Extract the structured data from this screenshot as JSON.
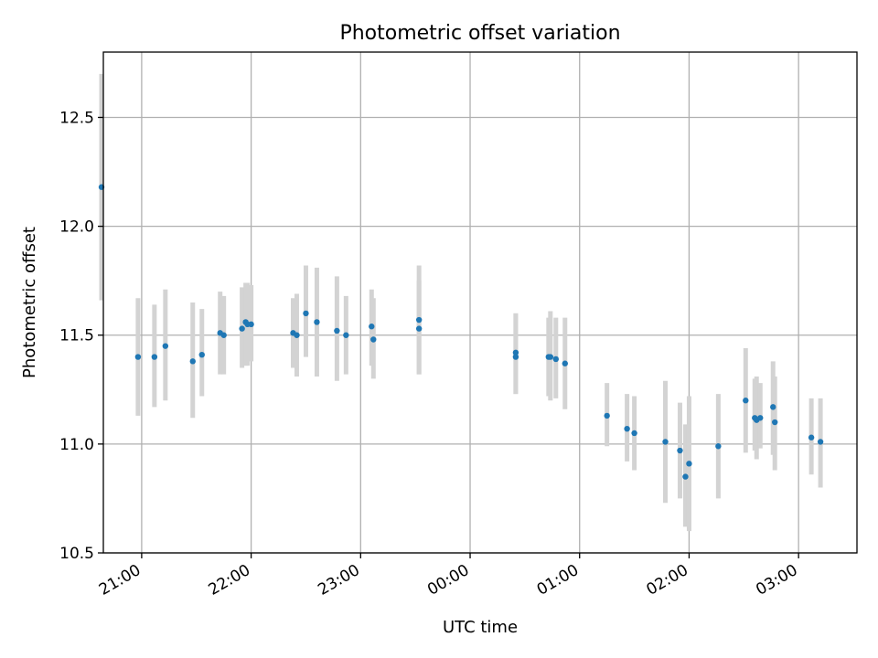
{
  "chart_data": {
    "type": "scatter",
    "title": "Photometric offset variation",
    "xlabel": "UTC time",
    "ylabel": "Photometric offset",
    "ylim": [
      10.5,
      12.8
    ],
    "xlim": [
      "20:39",
      "03:32"
    ],
    "yticks": [
      "10.5",
      "11.0",
      "11.5",
      "12.0",
      "12.5"
    ],
    "xticks": [
      "21:00",
      "22:00",
      "23:00",
      "00:00",
      "01:00",
      "02:00",
      "03:00"
    ],
    "grid": true,
    "legend": false,
    "colors": {
      "points": "#1f77b4",
      "errorbars": "#d3d3d3"
    },
    "series": [
      {
        "x": [
          "20:38",
          "20:58",
          "21:07",
          "21:13",
          "21:28",
          "21:33",
          "21:43",
          "21:45",
          "21:55",
          "21:57",
          "21:58",
          "22:00",
          "22:23",
          "22:25",
          "22:30",
          "22:36",
          "22:47",
          "22:52",
          "23:06",
          "23:07",
          "23:32",
          "23:32",
          "00:25",
          "00:25",
          "00:43",
          "00:44",
          "00:47",
          "00:52",
          "01:15",
          "01:26",
          "01:30",
          "01:47",
          "01:55",
          "01:58",
          "02:00",
          "02:16",
          "02:31",
          "02:36",
          "02:37",
          "02:39",
          "02:46",
          "02:47",
          "03:07",
          "03:12"
        ],
        "y": [
          12.18,
          11.4,
          11.4,
          11.45,
          11.38,
          11.41,
          11.51,
          11.5,
          11.53,
          11.56,
          11.55,
          11.55,
          11.51,
          11.5,
          11.6,
          11.56,
          11.52,
          11.5,
          11.54,
          11.48,
          11.57,
          11.53,
          11.4,
          11.42,
          11.4,
          11.4,
          11.39,
          11.37,
          11.13,
          11.07,
          11.05,
          11.01,
          10.97,
          10.85,
          10.91,
          10.99,
          11.2,
          11.12,
          11.11,
          11.12,
          11.17,
          11.1,
          11.03,
          11.01
        ],
        "err_low": [
          11.66,
          11.13,
          11.17,
          11.2,
          11.12,
          11.22,
          11.32,
          11.32,
          11.35,
          11.36,
          11.36,
          11.38,
          11.35,
          11.31,
          11.4,
          11.31,
          11.29,
          11.32,
          11.36,
          11.3,
          11.32,
          11.32,
          11.23,
          11.23,
          11.22,
          11.2,
          11.21,
          11.16,
          10.99,
          10.92,
          10.88,
          10.73,
          10.75,
          10.62,
          10.6,
          10.75,
          10.96,
          10.97,
          10.93,
          10.98,
          10.95,
          10.88,
          10.86,
          10.8
        ],
        "err_high": [
          12.7,
          11.67,
          11.64,
          11.71,
          11.65,
          11.62,
          11.7,
          11.68,
          11.72,
          11.74,
          11.74,
          11.73,
          11.67,
          11.69,
          11.82,
          11.81,
          11.77,
          11.68,
          11.71,
          11.67,
          11.82,
          11.75,
          11.6,
          11.6,
          11.58,
          11.61,
          11.58,
          11.58,
          11.28,
          11.23,
          11.22,
          11.29,
          11.19,
          11.09,
          11.22,
          11.23,
          11.44,
          11.3,
          11.31,
          11.28,
          11.38,
          11.31,
          11.21,
          11.21
        ]
      }
    ]
  }
}
